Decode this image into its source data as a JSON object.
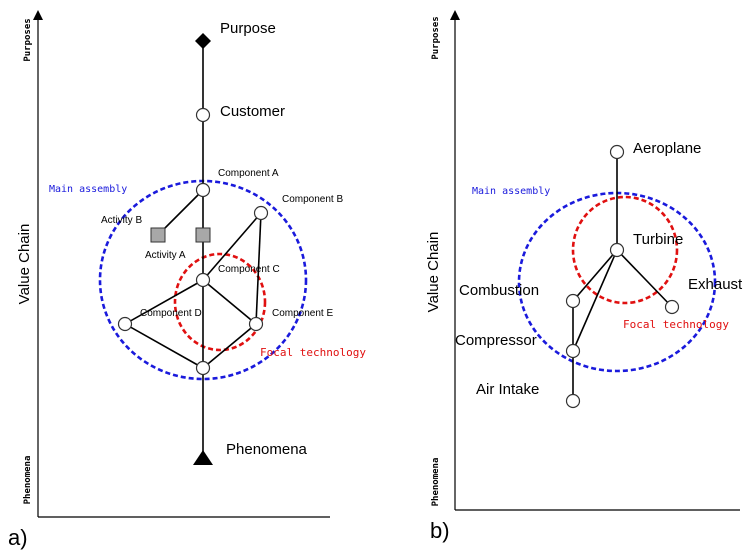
{
  "panel_a": {
    "tag": "a)",
    "axis": {
      "y_label": "Value Chain",
      "top_label": "Purposes",
      "bottom_label": "Phenomena"
    },
    "nodes": {
      "purpose": "Purpose",
      "customer": "Customer",
      "component_a": "Component A",
      "component_b": "Component B",
      "component_c": "Component C",
      "component_d": "Component D",
      "component_e": "Component E",
      "activity_a": "Activity A",
      "activity_b": "Activity B",
      "phenomena": "Phenomena"
    },
    "rings": {
      "main": "Main assembly",
      "focal": "Focal technology"
    }
  },
  "panel_b": {
    "tag": "b)",
    "axis": {
      "y_label": "Value Chain",
      "top_label": "Purposes",
      "bottom_label": "Phenomena"
    },
    "nodes": {
      "aeroplane": "Aeroplane",
      "turbine": "Turbine",
      "exhaust": "Exhaust",
      "combustion": "Combustion",
      "compressor": "Compressor",
      "air_intake": "Air Intake"
    },
    "rings": {
      "main": "Main assembly",
      "focal": "Focal technology"
    }
  },
  "colors": {
    "main_ring": "#1a1adc",
    "focal_ring": "#e01010",
    "activity_fill": "#a8a8a8"
  }
}
